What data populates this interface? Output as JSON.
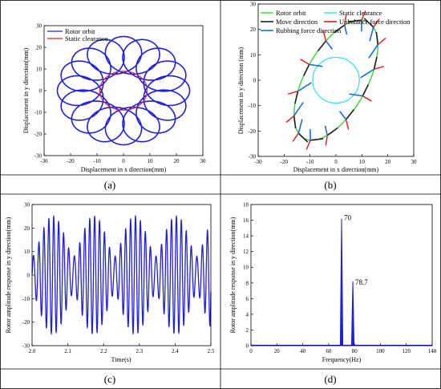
{
  "panels": [
    {
      "caption": "(a)"
    },
    {
      "caption": "(b)"
    },
    {
      "caption": "(c)"
    },
    {
      "caption": "(d)"
    }
  ],
  "colors": {
    "blue": "#1f1fe0",
    "red": "#e21a1a",
    "green": "#35d635",
    "cyan": "#2fe0ef",
    "black": "#222222",
    "lineblue": "#1a6fd6"
  },
  "chart_data": [
    {
      "type": "line",
      "xlabel": "Displacement in x direction(mm)",
      "ylabel": "Displacement in y direction(mm)",
      "xlim": [
        -30,
        30
      ],
      "ylim": [
        -30,
        30
      ],
      "xticks": [
        "-30",
        "-20",
        "-10",
        "0",
        "10",
        "20",
        "30"
      ],
      "yticks": [
        "-30",
        "-20",
        "-10",
        "0",
        "10",
        "20",
        "30"
      ],
      "legend": [
        "Rotor orbit",
        "Static clearance"
      ],
      "legend_position": "top-left",
      "orbit": {
        "outer_radius": 25,
        "inner_radius": 8,
        "petals": 16
      },
      "clearance_radius": 9
    },
    {
      "type": "line",
      "xlabel": "Displacement in x direction(mm)",
      "ylabel": "Displacement in y direction (mm)",
      "xlim": [
        -30,
        30
      ],
      "ylim": [
        -30,
        30
      ],
      "xticks": [
        "-30",
        "-20",
        "-10",
        "0",
        "10",
        "20",
        "30"
      ],
      "yticks": [
        "-30",
        "-20",
        "-10",
        "0",
        "10",
        "20",
        "30"
      ],
      "legend": [
        "Rotor orbit",
        "Static clearance",
        "Move direction",
        "Unbalance force direction",
        "Rubbing force direction"
      ],
      "legend_position": "top",
      "orbit_ellipse": {
        "semi_major": 26,
        "semi_minor": 12,
        "tilt_deg": 62
      },
      "clearance_radius": 9
    },
    {
      "type": "line",
      "xlabel": "Time(s)",
      "ylabel": "Rotor amplitude response in y direction(mm)",
      "xlim": [
        2.0,
        2.5
      ],
      "ylim": [
        -30,
        30
      ],
      "xticks": [
        "2.0",
        "2.1",
        "2.2",
        "2.3",
        "2.4",
        "2.5"
      ],
      "yticks": [
        "-30",
        "-20",
        "-10",
        "0",
        "10",
        "20",
        "30"
      ],
      "signal": {
        "freqs_hz": [
          70,
          78.7
        ],
        "amplitudes_mm": [
          16.5,
          8.5
        ]
      }
    },
    {
      "type": "line",
      "xlabel": "Frequency(Hz)",
      "ylabel": "Rotor amplitude response in y direction(mm)",
      "xlim": [
        0,
        140
      ],
      "ylim": [
        0,
        18
      ],
      "xticks": [
        "0",
        "20",
        "40",
        "60",
        "80",
        "100",
        "120",
        "140"
      ],
      "yticks": [
        "0",
        "2",
        "4",
        "6",
        "8",
        "10",
        "12",
        "14",
        "16",
        "18"
      ],
      "peaks": [
        {
          "x": 70,
          "y": 16.2,
          "label": "70"
        },
        {
          "x": 78.7,
          "y": 8.2,
          "label": "78.7"
        }
      ]
    }
  ]
}
